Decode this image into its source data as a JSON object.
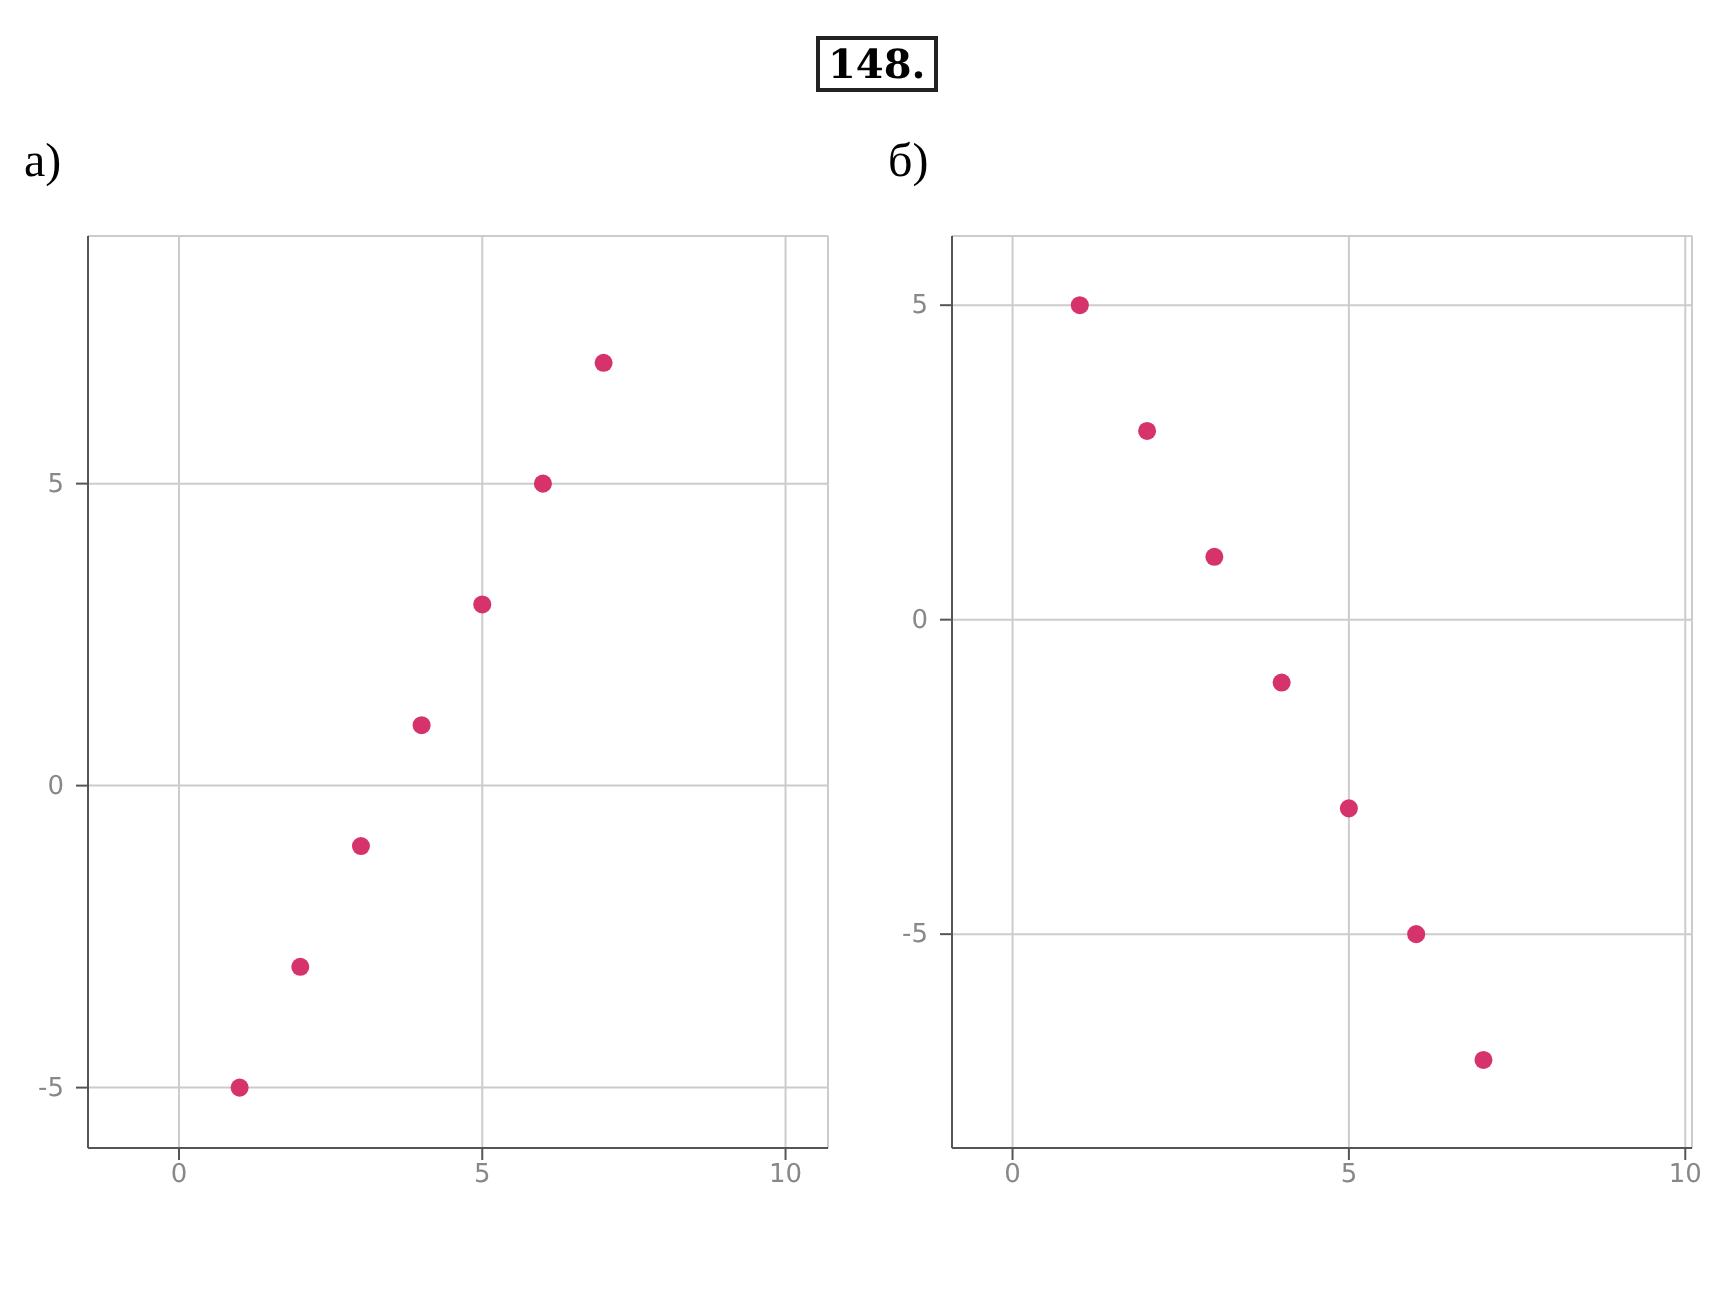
{
  "chart_data": [
    {
      "type": "scatter",
      "title": "а)",
      "annotations": [
        "148."
      ],
      "x": [
        1,
        2,
        3,
        4,
        5,
        6,
        7
      ],
      "values": [
        -5,
        -3,
        -1,
        1,
        3,
        5,
        7
      ],
      "color": "#d6336c",
      "marker": "circle",
      "grid": true,
      "xlim": [
        -1.5,
        10.7
      ],
      "ylim": [
        -6,
        9.1
      ],
      "xticks": [
        0,
        5,
        10
      ],
      "yticks": [
        -5,
        0,
        5
      ]
    },
    {
      "type": "scatter",
      "title": "б)",
      "x": [
        1,
        2,
        3,
        4,
        5,
        6,
        7
      ],
      "values": [
        5,
        3,
        1,
        -1,
        -3,
        -5,
        -7
      ],
      "color": "#d6336c",
      "marker": "circle",
      "grid": true,
      "xlim": [
        -0.9,
        10.1
      ],
      "ylim": [
        -8.4,
        6.1
      ],
      "xticks": [
        0,
        5,
        10
      ],
      "yticks": [
        -5,
        0,
        5
      ]
    }
  ]
}
